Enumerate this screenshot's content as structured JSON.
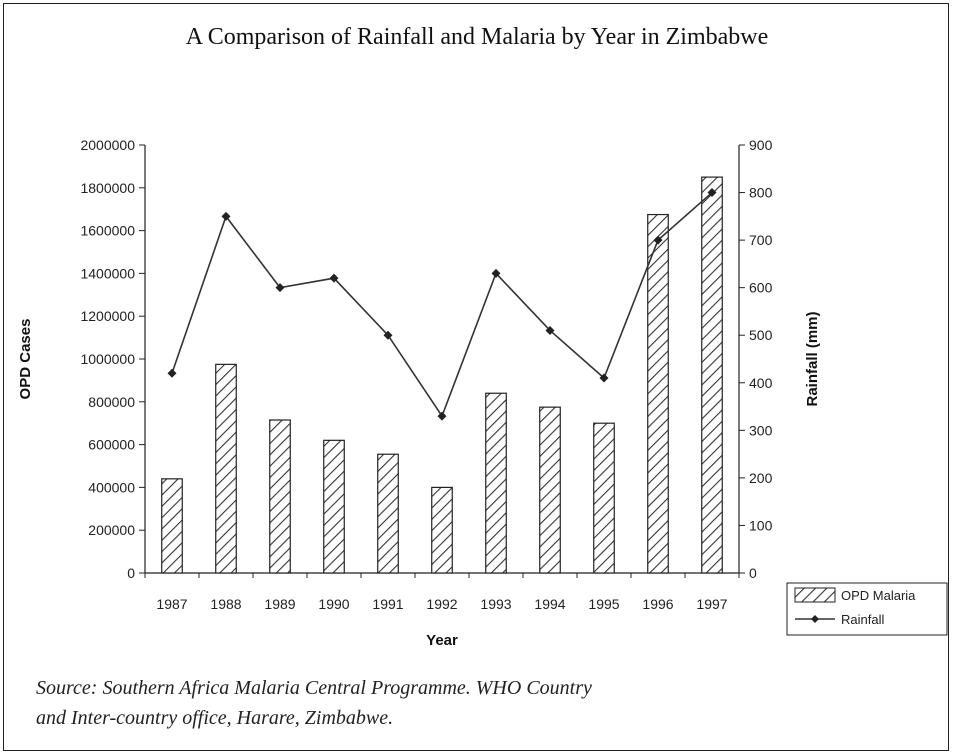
{
  "title": "A Comparison of Rainfall and Malaria by Year in Zimbabwe",
  "source": {
    "line1": "Source: Southern Africa Malaria Central Programme. WHO Country",
    "line2": "and Inter-country office, Harare, Zimbabwe."
  },
  "chart_data": {
    "type": "bar",
    "title": "A Comparison of Rainfall and Malaria by Year in Zimbabwe",
    "xlabel": "Year",
    "ylabel": "OPD Cases",
    "y2label": "Rainfall (mm)",
    "categories": [
      "1987",
      "1988",
      "1989",
      "1990",
      "1991",
      "1992",
      "1993",
      "1994",
      "1995",
      "1996",
      "1997"
    ],
    "ylim": [
      0,
      2000000
    ],
    "y2lim": [
      0,
      900
    ],
    "yticks": [
      "0",
      "200000",
      "400000",
      "600000",
      "800000",
      "1000000",
      "1200000",
      "1400000",
      "1600000",
      "1800000",
      "2000000"
    ],
    "y2ticks": [
      "0",
      "100",
      "200",
      "300",
      "400",
      "500",
      "600",
      "700",
      "800",
      "900"
    ],
    "legend_position": "bottom-right",
    "grid": false,
    "series": [
      {
        "name": "OPD Malaria",
        "type": "bar",
        "axis": "left",
        "pattern": "diagonal-hatch",
        "values": [
          440000,
          975000,
          715000,
          620000,
          555000,
          400000,
          840000,
          775000,
          700000,
          1675000,
          1850000
        ]
      },
      {
        "name": "Rainfall",
        "type": "line",
        "axis": "right",
        "marker": "diamond",
        "values": [
          420,
          750,
          600,
          620,
          500,
          330,
          630,
          510,
          410,
          700,
          800
        ]
      }
    ]
  }
}
